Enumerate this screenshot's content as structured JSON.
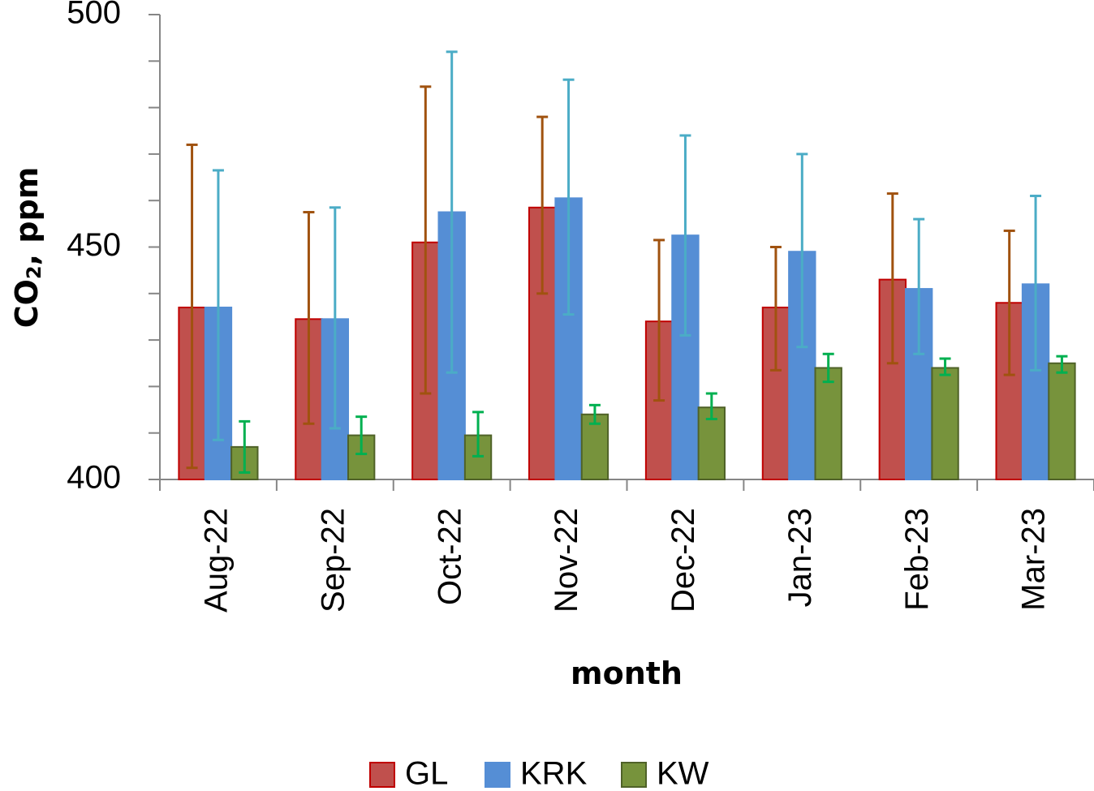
{
  "chart_data": {
    "type": "bar",
    "title": "",
    "xlabel": "month",
    "ylabel": {
      "prefix": "CO",
      "subscript": "2",
      "suffix": ", ppm"
    },
    "ylim": [
      400,
      500
    ],
    "yticks_labeled": [
      400,
      450,
      500
    ],
    "minor_tick_step": 10,
    "grid": false,
    "legend_position": "bottom",
    "categories": [
      "Aug-22",
      "Sep-22",
      "Oct-22",
      "Nov-22",
      "Dec-22",
      "Jan-23",
      "Feb-23",
      "Mar-23"
    ],
    "series": [
      {
        "name": "GL",
        "color": "#c0504d",
        "edge": "#c00000",
        "error_color": "#a0520f",
        "values": [
          437,
          434.5,
          451,
          458.5,
          434,
          437,
          443,
          438
        ],
        "err_low": [
          402.5,
          412,
          418.5,
          440,
          417,
          423.5,
          425,
          422.5
        ],
        "err_high": [
          472,
          457.5,
          484.5,
          478,
          451.5,
          450,
          461.5,
          453.5
        ]
      },
      {
        "name": "KRK",
        "color": "#558ed5",
        "edge": "#558ed5",
        "error_color": "#4bacc6",
        "values": [
          437,
          434.5,
          457.5,
          460.5,
          452.5,
          449,
          441,
          442
        ],
        "err_low": [
          408.5,
          411,
          423,
          435.5,
          431,
          428.5,
          427,
          423.5
        ],
        "err_high": [
          466.5,
          458.5,
          492,
          486,
          474,
          470,
          456,
          461
        ]
      },
      {
        "name": "KW",
        "color": "#77933c",
        "edge": "#4f6228",
        "error_color": "#00b050",
        "values": [
          407,
          409.5,
          409.5,
          414,
          415.5,
          424,
          424,
          425
        ],
        "err_low": [
          401.5,
          405.5,
          405,
          412,
          413,
          421,
          422.5,
          423
        ],
        "err_high": [
          412.5,
          413.5,
          414.5,
          416,
          418.5,
          427,
          426,
          426.5
        ]
      }
    ]
  }
}
